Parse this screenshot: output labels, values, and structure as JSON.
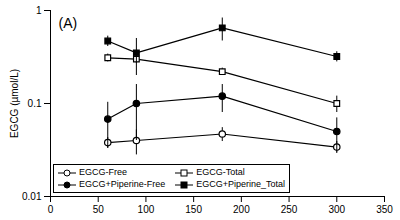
{
  "chart_data": {
    "type": "line",
    "annotation": "(A)",
    "y_label": "EGCG (µmol/L)",
    "log": "y",
    "xlim": [
      0,
      350
    ],
    "xticks": [
      0,
      50,
      100,
      150,
      200,
      250,
      300,
      350
    ],
    "ylim": [
      0.01,
      1
    ],
    "yticks": [
      0.01,
      0.1,
      1
    ],
    "legend": "bottom-left",
    "x": [
      60,
      90,
      180,
      300
    ],
    "series": [
      {
        "name": "EGCG-Free",
        "color": "#000000",
        "marker": "circle-open",
        "values": [
          0.038,
          0.04,
          0.047,
          0.034
        ],
        "errors": [
          0.005,
          0.012,
          0.008,
          0.005
        ]
      },
      {
        "name": "EGCG-Total",
        "color": "#000000",
        "marker": "square-open",
        "values": [
          0.31,
          0.3,
          0.22,
          0.1
        ],
        "errors": [
          0.03,
          0.03,
          0.02,
          0.02
        ]
      },
      {
        "name": "EGCG+Piperine-Free",
        "color": "#000000",
        "marker": "circle",
        "values": [
          0.068,
          0.1,
          0.12,
          0.05
        ],
        "errors": [
          0.035,
          0.06,
          0.04,
          0.02
        ]
      },
      {
        "name": "EGCG+Piperine_Total",
        "color": "#000000",
        "marker": "square",
        "values": [
          0.47,
          0.35,
          0.65,
          0.32
        ],
        "errors": [
          0.06,
          0.15,
          0.18,
          0.04
        ]
      }
    ]
  }
}
